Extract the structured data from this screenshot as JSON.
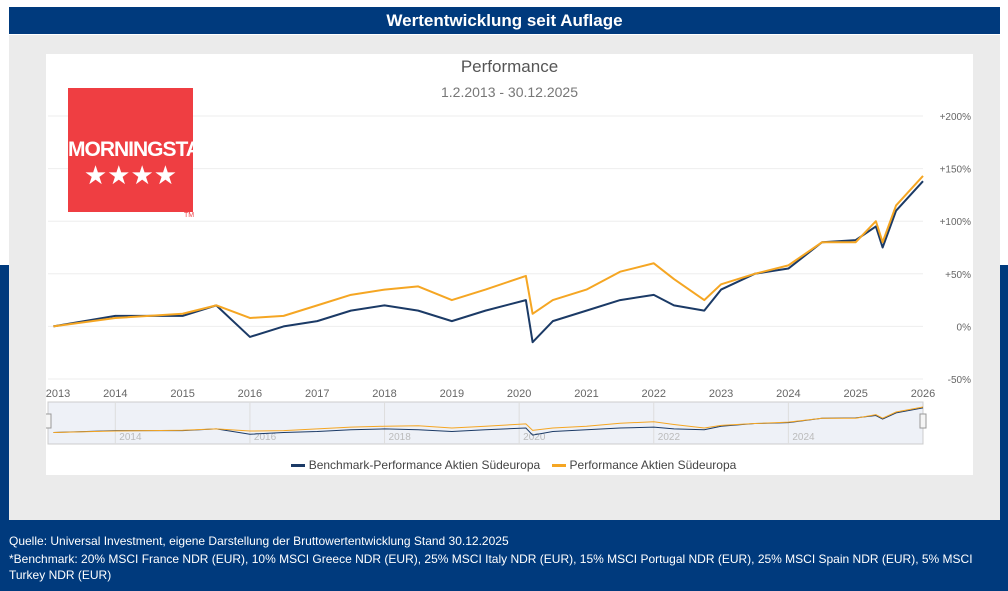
{
  "header": {
    "title": "Wertentwicklung seit Auflage"
  },
  "logo": {
    "text": "MORNINGSTAR",
    "rating_stars": 4,
    "tm": "TM",
    "color": "#ef3e42"
  },
  "chart_data": {
    "type": "line",
    "title": "Performance",
    "subtitle": "1.2.2013 - 30.12.2025",
    "y_ticks": [
      "+200%",
      "+150%",
      "+100%",
      "+50%",
      "0%",
      "-50%"
    ],
    "ylim": [
      -50,
      200
    ],
    "x_ticks": [
      "2013",
      "2014",
      "2015",
      "2016",
      "2017",
      "2018",
      "2019",
      "2020",
      "2021",
      "2022",
      "2023",
      "2024",
      "2025",
      "2026"
    ],
    "xlim": [
      2013,
      2026
    ],
    "navigator_ticks": [
      "2014",
      "2016",
      "2018",
      "2020",
      "2022",
      "2024"
    ],
    "grid": true,
    "legend_position": "bottom",
    "x": [
      2013.08,
      2014,
      2015,
      2015.5,
      2016,
      2016.5,
      2017,
      2017.5,
      2018,
      2018.5,
      2019,
      2019.5,
      2020.1,
      2020.2,
      2020.5,
      2021,
      2021.5,
      2022,
      2022.3,
      2022.75,
      2023,
      2023.5,
      2024,
      2024.5,
      2025,
      2025.3,
      2025.4,
      2025.6,
      2026
    ],
    "series": [
      {
        "name": "Benchmark-Performance Aktien Südeuropa",
        "color": "#1b3a66",
        "values": [
          0,
          10,
          10,
          20,
          -10,
          0,
          5,
          15,
          20,
          15,
          5,
          15,
          25,
          -15,
          5,
          15,
          25,
          30,
          20,
          15,
          35,
          50,
          55,
          80,
          82,
          95,
          75,
          110,
          138
        ]
      },
      {
        "name": "Performance Aktien Südeuropa",
        "color": "#f5a623",
        "values": [
          0,
          8,
          12,
          20,
          8,
          10,
          20,
          30,
          35,
          38,
          25,
          35,
          48,
          12,
          25,
          35,
          52,
          60,
          45,
          25,
          40,
          50,
          58,
          80,
          80,
          100,
          80,
          115,
          143
        ]
      }
    ]
  },
  "footer": {
    "source": "Quelle: Universal Investment, eigene Darstellung der Bruttowertentwicklung Stand 30.12.2025",
    "benchmark": "*Benchmark: 20% MSCI France NDR (EUR), 10% MSCI Greece NDR (EUR), 25% MSCI Italy NDR (EUR), 15% MSCI Portugal NDR (EUR), 25% MSCI Spain NDR (EUR), 5% MSCI Turkey NDR (EUR)"
  }
}
